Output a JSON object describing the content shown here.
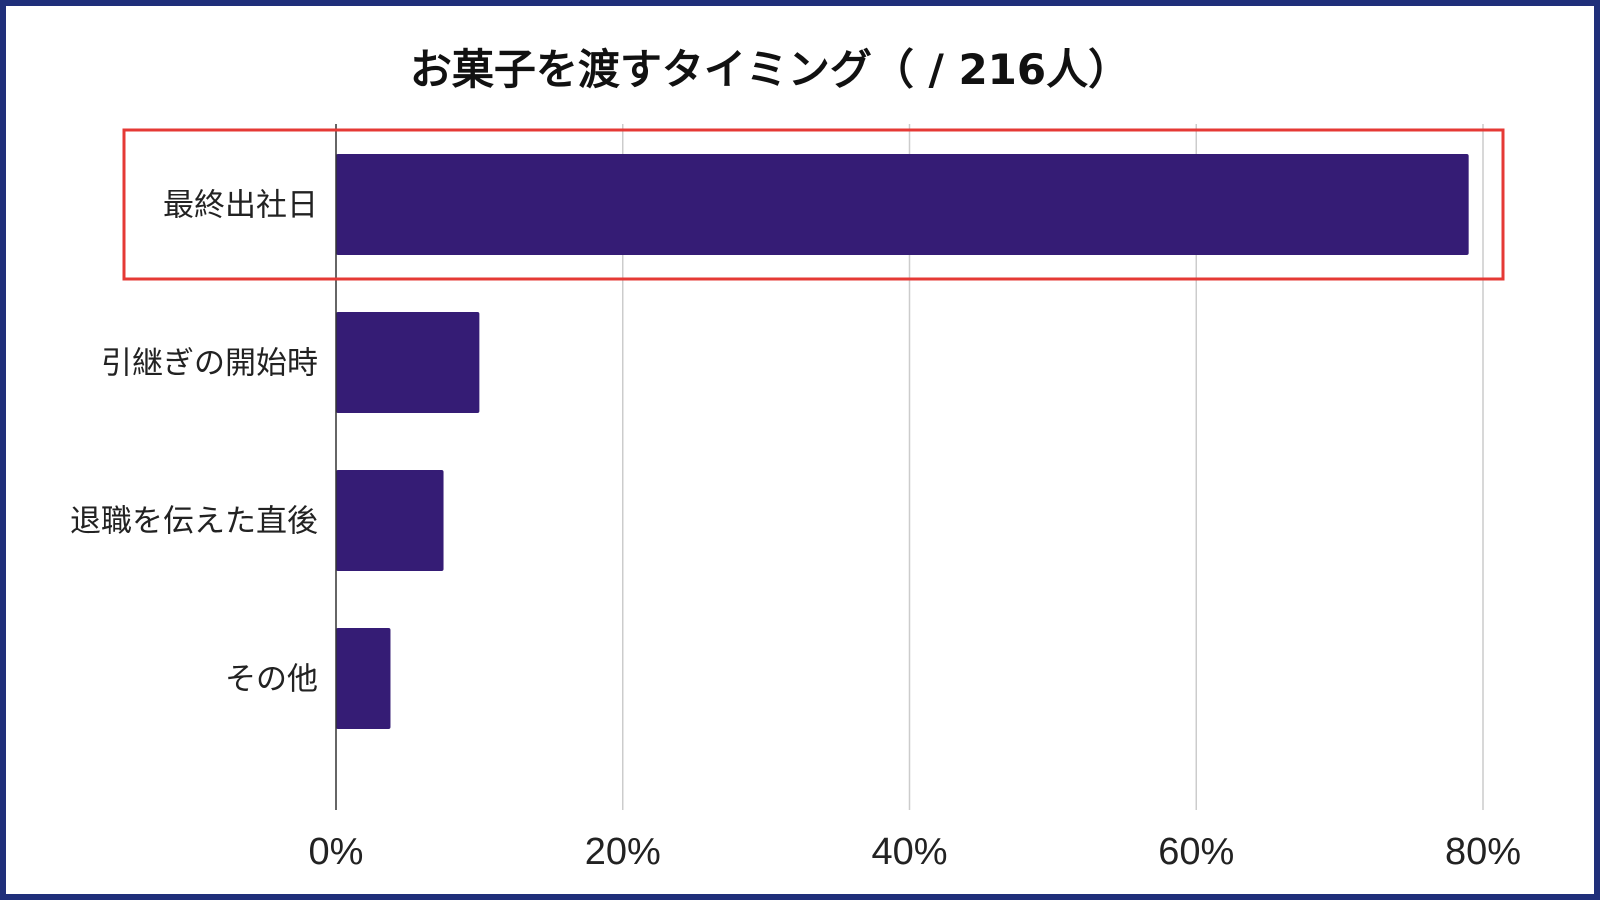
{
  "chart_data": {
    "type": "bar",
    "orientation": "horizontal",
    "title": "お菓子を渡すタイミング（ / 216人）",
    "categories": [
      "最終出社日",
      "引継ぎの開始時",
      "退職を伝えた直後",
      "その他"
    ],
    "values": [
      79,
      10,
      7.5,
      3.8
    ],
    "xlim": [
      0,
      80
    ],
    "x_ticks": [
      "0%",
      "20%",
      "40%",
      "60%",
      "80%"
    ],
    "x_tick_values": [
      0,
      20,
      40,
      60,
      80
    ],
    "grid": true,
    "legend": "none",
    "highlighted_category": "最終出社日",
    "colors": {
      "bar": "#351c75",
      "grid": "#cccccc",
      "axis": "#333333",
      "highlight_box": "#e53935",
      "border": "#1f2f7a"
    }
  }
}
